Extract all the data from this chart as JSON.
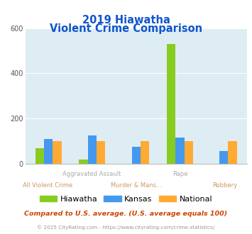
{
  "title_line1": "2019 Hiawatha",
  "title_line2": "Violent Crime Comparison",
  "hiawatha": [
    70,
    20,
    0,
    530,
    0
  ],
  "kansas": [
    110,
    125,
    75,
    115,
    55
  ],
  "national": [
    100,
    100,
    100,
    100,
    100
  ],
  "color_hiawatha": "#88cc22",
  "color_kansas": "#4499ee",
  "color_national": "#ffaa33",
  "ylim": [
    0,
    600
  ],
  "yticks": [
    0,
    200,
    400,
    600
  ],
  "bg_color": "#deedf4",
  "title_color": "#1155cc",
  "top_label_color": "#aaaaaa",
  "bottom_label_color": "#cc9966",
  "top_labels": [
    "",
    "Aggravated Assault",
    "",
    "Rape",
    ""
  ],
  "bottom_labels": [
    "All Violent Crime",
    "",
    "Murder & Mans...",
    "",
    "Robbery"
  ],
  "footnote1": "Compared to U.S. average. (U.S. average equals 100)",
  "footnote2": "© 2025 CityRating.com - https://www.cityrating.com/crime-statistics/",
  "footnote1_color": "#cc4400",
  "footnote2_color": "#999999",
  "legend_labels": [
    "Hiawatha",
    "Kansas",
    "National"
  ]
}
